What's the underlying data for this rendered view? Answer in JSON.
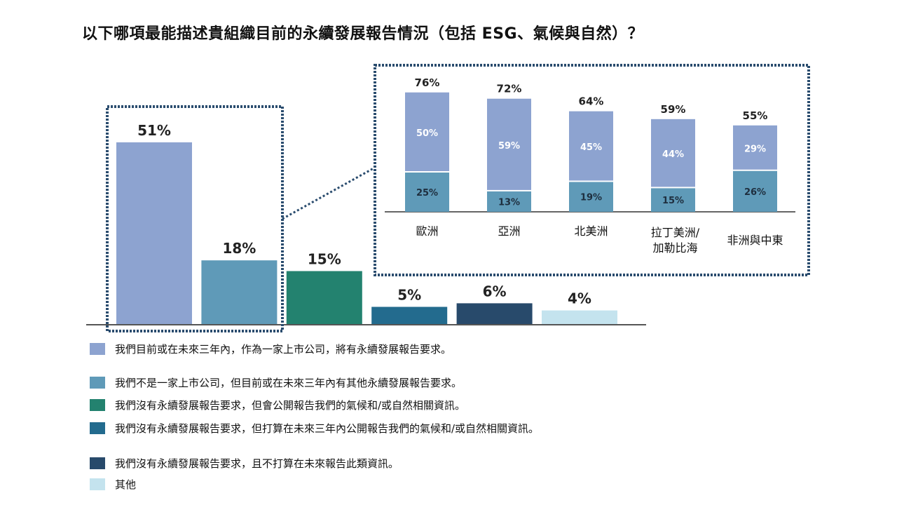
{
  "title": "以下哪項最能描述貴組織目前的永續發展報告情況（包括 ESG、氣候與自然）？",
  "chart_data": {
    "type": "bar",
    "title": "以下哪項最能描述貴組織目前的永續發展報告情況（包括 ESG、氣候與自然）？",
    "main": {
      "categories": [
        "我們目前或在未來三年內，作為一家上市公司，將有永續發展報告要求。",
        "我們不是一家上市公司，但目前或在未來三年內有其他永續發展報告要求。",
        "我們沒有永續發展報告要求，但會公開報告我們的氣候和/或自然相關資訊。",
        "我們沒有永續發展報告要求，但打算在未來三年內公開報告我們的氣候和/或自然相關資訊。",
        "我們沒有永續發展報告要求，且不打算在未來報告此類資訊。",
        "其他"
      ],
      "values": [
        51,
        18,
        15,
        5,
        6,
        4
      ],
      "labels": [
        "51%",
        "18%",
        "15%",
        "5%",
        "6%",
        "4%"
      ],
      "colors": [
        "#8DA3D0",
        "#5F9AB8",
        "#23826F",
        "#236B8E",
        "#284A6B",
        "#C4E3EE"
      ]
    },
    "inset": {
      "type": "stacked-bar",
      "categories": [
        "歐洲",
        "亞洲",
        "北美洲",
        "拉丁美洲/\n加勒比海",
        "非洲與中東"
      ],
      "series": [
        {
          "name": "我們目前或在未來三年內，作為一家上市公司，將有永續發展報告要求。",
          "values": [
            50,
            59,
            45,
            44,
            29
          ],
          "labels": [
            "50%",
            "59%",
            "45%",
            "44%",
            "29%"
          ]
        },
        {
          "name": "我們不是一家上市公司，但目前或在未來三年內有其他永續發展報告要求。",
          "values": [
            25,
            13,
            19,
            15,
            26
          ],
          "labels": [
            "25%",
            "13%",
            "19%",
            "15%",
            "26%"
          ]
        }
      ],
      "totals": [
        76,
        72,
        64,
        59,
        55
      ],
      "total_labels": [
        "76%",
        "72%",
        "64%",
        "59%",
        "55%"
      ]
    },
    "legend": "bottom-left"
  },
  "colors": {
    "frame": "#2A4C6E",
    "axis": "#555555"
  }
}
